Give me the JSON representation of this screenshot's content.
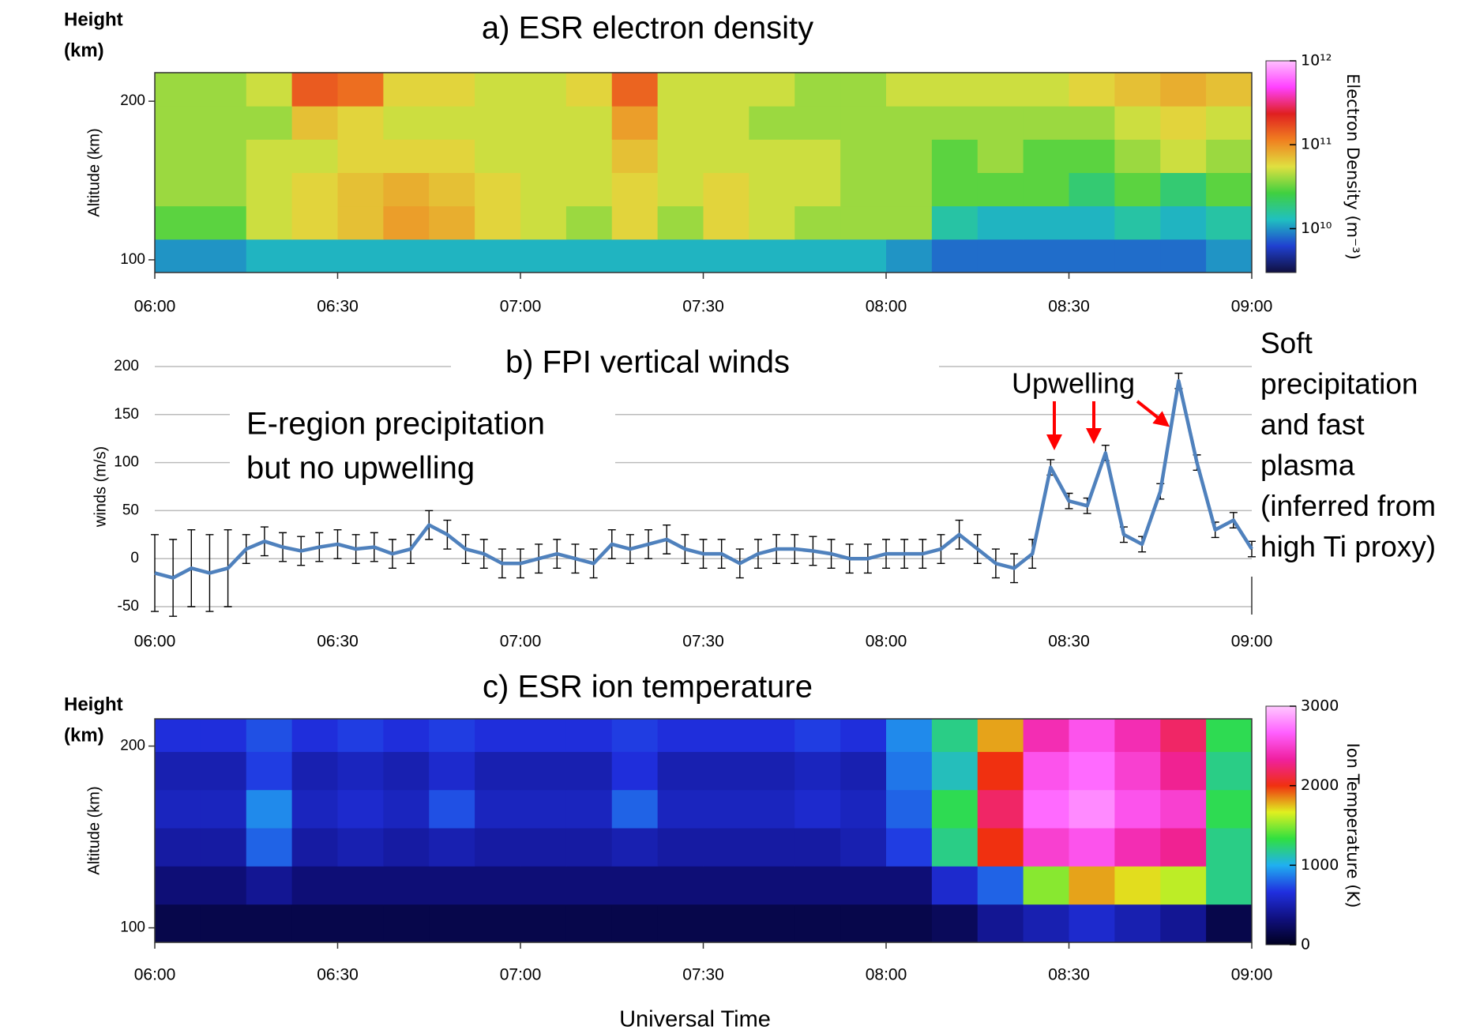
{
  "chart_data": [
    {
      "type": "heatmap",
      "title": "a) ESR electron density",
      "height_label": [
        "Height",
        "(km)"
      ],
      "ylabel": "Altitude (km)",
      "xlim": [
        6,
        9
      ],
      "xticks": [
        {
          "value": 6,
          "label": "06:00"
        },
        {
          "value": 6.5,
          "label": "06:30"
        },
        {
          "value": 7,
          "label": "07:00"
        },
        {
          "value": 7.5,
          "label": "07:30"
        },
        {
          "value": 8,
          "label": "08:00"
        },
        {
          "value": 8.5,
          "label": "08:30"
        },
        {
          "value": 9,
          "label": "09:00"
        }
      ],
      "ylim": [
        92,
        218
      ],
      "yticks": [
        100,
        200
      ],
      "x_edges": [
        6,
        6.125,
        6.25,
        6.375,
        6.5,
        6.625,
        6.75,
        6.875,
        7,
        7.125,
        7.25,
        7.375,
        7.5,
        7.625,
        7.75,
        7.875,
        8,
        8.125,
        8.25,
        8.375,
        8.5,
        8.625,
        8.75,
        8.875,
        9
      ],
      "y_edges": [
        92,
        113,
        134,
        155,
        176,
        197,
        218
      ],
      "z": [
        [
          10000000000.0,
          10000000000.0,
          12000000000.0,
          12000000000.0,
          12000000000.0,
          12000000000.0,
          12000000000.0,
          12000000000.0,
          12000000000.0,
          12000000000.0,
          12000000000.0,
          12000000000.0,
          12000000000.0,
          12000000000.0,
          12000000000.0,
          12000000000.0,
          10000000000.0,
          8000000000.0,
          8000000000.0,
          8000000000.0,
          8000000000.0,
          8000000000.0,
          8000000000.0,
          10000000000.0
        ],
        [
          30000000000.0,
          30000000000.0,
          50000000000.0,
          60000000000.0,
          70000000000.0,
          90000000000.0,
          80000000000.0,
          60000000000.0,
          50000000000.0,
          40000000000.0,
          60000000000.0,
          40000000000.0,
          60000000000.0,
          50000000000.0,
          40000000000.0,
          40000000000.0,
          40000000000.0,
          15000000000.0,
          12000000000.0,
          12000000000.0,
          12000000000.0,
          15000000000.0,
          12000000000.0,
          15000000000.0
        ],
        [
          40000000000.0,
          40000000000.0,
          50000000000.0,
          60000000000.0,
          70000000000.0,
          80000000000.0,
          70000000000.0,
          60000000000.0,
          50000000000.0,
          50000000000.0,
          60000000000.0,
          50000000000.0,
          60000000000.0,
          50000000000.0,
          50000000000.0,
          40000000000.0,
          40000000000.0,
          30000000000.0,
          30000000000.0,
          30000000000.0,
          20000000000.0,
          30000000000.0,
          20000000000.0,
          30000000000.0
        ],
        [
          40000000000.0,
          40000000000.0,
          50000000000.0,
          50000000000.0,
          60000000000.0,
          60000000000.0,
          60000000000.0,
          50000000000.0,
          50000000000.0,
          50000000000.0,
          70000000000.0,
          50000000000.0,
          50000000000.0,
          50000000000.0,
          50000000000.0,
          40000000000.0,
          40000000000.0,
          30000000000.0,
          40000000000.0,
          30000000000.0,
          30000000000.0,
          40000000000.0,
          50000000000.0,
          40000000000.0
        ],
        [
          40000000000.0,
          40000000000.0,
          40000000000.0,
          70000000000.0,
          60000000000.0,
          50000000000.0,
          50000000000.0,
          50000000000.0,
          50000000000.0,
          50000000000.0,
          90000000000.0,
          50000000000.0,
          50000000000.0,
          40000000000.0,
          40000000000.0,
          40000000000.0,
          40000000000.0,
          40000000000.0,
          40000000000.0,
          40000000000.0,
          40000000000.0,
          50000000000.0,
          60000000000.0,
          50000000000.0
        ],
        [
          40000000000.0,
          40000000000.0,
          50000000000.0,
          150000000000.0,
          130000000000.0,
          60000000000.0,
          60000000000.0,
          50000000000.0,
          50000000000.0,
          60000000000.0,
          140000000000.0,
          50000000000.0,
          50000000000.0,
          50000000000.0,
          40000000000.0,
          40000000000.0,
          50000000000.0,
          50000000000.0,
          50000000000.0,
          50000000000.0,
          60000000000.0,
          70000000000.0,
          80000000000.0,
          70000000000.0
        ]
      ],
      "colorbar_label": "Electron Density (m⁻³)",
      "clog": true,
      "clim": [
        3000000000.0,
        1000000000000.0
      ],
      "cticks": [
        {
          "value": 10000000000.0,
          "label": "10¹⁰"
        },
        {
          "value": 100000000000.0,
          "label": "10¹¹"
        },
        {
          "value": 1000000000000.0,
          "label": "10¹²"
        }
      ],
      "colormap": [
        "#101040",
        "#2040d0",
        "#20c0c0",
        "#40d040",
        "#e0e040",
        "#f08020",
        "#e02020",
        "#ff40ff",
        "#ffc0ff"
      ]
    },
    {
      "type": "line",
      "title": "b) FPI vertical winds",
      "ylabel": "winds (m/s)",
      "xlim": [
        6,
        9
      ],
      "xticks": [
        {
          "value": 6,
          "label": "06:00"
        },
        {
          "value": 6.5,
          "label": "06:30"
        },
        {
          "value": 7,
          "label": "07:00"
        },
        {
          "value": 7.5,
          "label": "07:30"
        },
        {
          "value": 8,
          "label": "08:00"
        },
        {
          "value": 8.5,
          "label": "08:30"
        },
        {
          "value": 9,
          "label": "09:00"
        }
      ],
      "ylim": [
        -50,
        200
      ],
      "yticks": [
        -50,
        0,
        50,
        100,
        150,
        200
      ],
      "grid": true,
      "color": "#4f81bd",
      "x": [
        6,
        6.05,
        6.1,
        6.15,
        6.2,
        6.25,
        6.3,
        6.35,
        6.4,
        6.45,
        6.5,
        6.55,
        6.6,
        6.65,
        6.7,
        6.75,
        6.8,
        6.85,
        6.9,
        6.95,
        7,
        7.05,
        7.1,
        7.15,
        7.2,
        7.25,
        7.3,
        7.35,
        7.4,
        7.45,
        7.5,
        7.55,
        7.6,
        7.65,
        7.7,
        7.75,
        7.8,
        7.85,
        7.9,
        7.95,
        8,
        8.05,
        8.1,
        8.15,
        8.2,
        8.25,
        8.3,
        8.35,
        8.4,
        8.45,
        8.5,
        8.55,
        8.6,
        8.65,
        8.7,
        8.75,
        8.8,
        8.85,
        8.9,
        8.95,
        9
      ],
      "values": [
        -15,
        -20,
        -10,
        -15,
        -10,
        10,
        18,
        12,
        8,
        12,
        15,
        10,
        12,
        5,
        10,
        35,
        25,
        10,
        5,
        -5,
        -5,
        0,
        5,
        0,
        -5,
        15,
        10,
        15,
        20,
        10,
        5,
        5,
        -5,
        5,
        10,
        10,
        8,
        5,
        0,
        0,
        5,
        5,
        5,
        10,
        25,
        10,
        -5,
        -10,
        5,
        95,
        60,
        55,
        110,
        25,
        15,
        70,
        185,
        100,
        30,
        40,
        10
      ],
      "errors": [
        40,
        40,
        40,
        40,
        40,
        15,
        15,
        15,
        15,
        15,
        15,
        15,
        15,
        15,
        15,
        15,
        15,
        15,
        15,
        15,
        15,
        15,
        15,
        15,
        15,
        15,
        15,
        15,
        15,
        15,
        15,
        15,
        15,
        15,
        15,
        15,
        15,
        15,
        15,
        15,
        15,
        15,
        15,
        15,
        15,
        15,
        15,
        15,
        15,
        8,
        8,
        8,
        8,
        8,
        8,
        8,
        8,
        8,
        8,
        8,
        8
      ],
      "annotation_color": "#ff0000",
      "annotations": [
        {
          "lines": [
            "E-region precipitation",
            "but no upwelling"
          ]
        },
        {
          "lines": [
            "Upwelling"
          ]
        },
        {
          "lines": [
            "Soft",
            "precipitation",
            "and fast",
            "plasma",
            "(inferred from",
            "high Ti proxy)"
          ]
        }
      ]
    },
    {
      "type": "heatmap",
      "title": "c) ESR ion temperature",
      "height_label": [
        "Height",
        "(km)"
      ],
      "ylabel": "Altitude (km)",
      "xlabel": "Universal Time",
      "xlim": [
        6,
        9
      ],
      "xticks": [
        {
          "value": 6,
          "label": "06:00"
        },
        {
          "value": 6.5,
          "label": "06:30"
        },
        {
          "value": 7,
          "label": "07:00"
        },
        {
          "value": 7.5,
          "label": "07:30"
        },
        {
          "value": 8,
          "label": "08:00"
        },
        {
          "value": 8.5,
          "label": "08:30"
        },
        {
          "value": 9,
          "label": "09:00"
        }
      ],
      "ylim": [
        92,
        215
      ],
      "yticks": [
        100,
        200
      ],
      "x_edges": [
        6,
        6.125,
        6.25,
        6.375,
        6.5,
        6.625,
        6.75,
        6.875,
        7,
        7.125,
        7.25,
        7.375,
        7.5,
        7.625,
        7.75,
        7.875,
        8,
        8.125,
        8.25,
        8.375,
        8.5,
        8.625,
        8.75,
        8.875,
        9
      ],
      "y_edges": [
        92,
        113,
        134,
        155,
        176,
        197,
        215
      ],
      "z": [
        [
          150,
          150,
          150,
          150,
          150,
          150,
          150,
          150,
          150,
          150,
          150,
          150,
          150,
          150,
          150,
          150,
          150,
          200,
          400,
          500,
          600,
          500,
          400,
          150
        ],
        [
          300,
          300,
          400,
          300,
          300,
          300,
          300,
          300,
          300,
          300,
          300,
          300,
          300,
          300,
          300,
          300,
          300,
          600,
          800,
          1500,
          1800,
          1700,
          1600,
          1200
        ],
        [
          450,
          450,
          800,
          450,
          500,
          450,
          500,
          450,
          450,
          450,
          500,
          450,
          450,
          450,
          450,
          500,
          700,
          1200,
          2000,
          2500,
          2600,
          2400,
          2300,
          1200
        ],
        [
          550,
          550,
          900,
          550,
          600,
          550,
          750,
          550,
          550,
          550,
          800,
          550,
          550,
          550,
          600,
          550,
          800,
          1300,
          2200,
          2700,
          2800,
          2600,
          2500,
          1300
        ],
        [
          500,
          500,
          700,
          500,
          550,
          500,
          600,
          500,
          500,
          500,
          650,
          500,
          500,
          500,
          550,
          500,
          850,
          1100,
          2000,
          2600,
          2700,
          2500,
          2300,
          1200
        ],
        [
          650,
          650,
          750,
          650,
          700,
          650,
          700,
          650,
          650,
          650,
          700,
          650,
          650,
          650,
          700,
          650,
          900,
          1200,
          1800,
          2400,
          2600,
          2400,
          2200,
          1300
        ]
      ],
      "colorbar_label": "Ion Temperature (K)",
      "clog": false,
      "clim": [
        0,
        3000
      ],
      "cticks": [
        0,
        1000,
        2000,
        3000
      ],
      "colormap": [
        "#000020",
        "#101080",
        "#2030e0",
        "#20b0f0",
        "#30e040",
        "#e0f020",
        "#f03010",
        "#f020a0",
        "#ff60ff",
        "#ffc8ff"
      ]
    }
  ]
}
